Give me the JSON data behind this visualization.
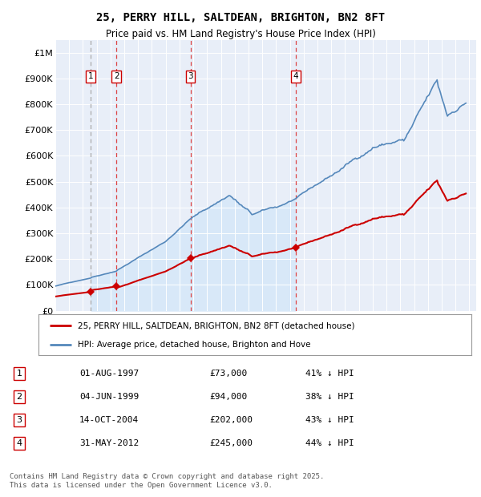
{
  "title": "25, PERRY HILL, SALTDEAN, BRIGHTON, BN2 8FT",
  "subtitle": "Price paid vs. HM Land Registry's House Price Index (HPI)",
  "footer": "Contains HM Land Registry data © Crown copyright and database right 2025.\nThis data is licensed under the Open Government Licence v3.0.",
  "legend_red": "25, PERRY HILL, SALTDEAN, BRIGHTON, BN2 8FT (detached house)",
  "legend_blue": "HPI: Average price, detached house, Brighton and Hove",
  "sales": [
    {
      "num": 1,
      "date_x": 1997.58,
      "price": 73000,
      "label": "01-AUG-1997",
      "pct": "41% ↓ HPI",
      "line_style": "gray"
    },
    {
      "num": 2,
      "date_x": 1999.42,
      "price": 94000,
      "label": "04-JUN-1999",
      "pct": "38% ↓ HPI",
      "line_style": "red"
    },
    {
      "num": 3,
      "date_x": 2004.79,
      "price": 202000,
      "label": "14-OCT-2004",
      "pct": "43% ↓ HPI",
      "line_style": "red"
    },
    {
      "num": 4,
      "date_x": 2012.42,
      "price": 245000,
      "label": "31-MAY-2012",
      "pct": "44% ↓ HPI",
      "line_style": "red"
    }
  ],
  "shade_start": 1997.58,
  "shade_end": 2012.42,
  "ylim": [
    0,
    1050000
  ],
  "ytick_vals": [
    0,
    100000,
    200000,
    300000,
    400000,
    500000,
    600000,
    700000,
    800000,
    900000,
    1000000
  ],
  "ytick_labels": [
    "£0",
    "£100K",
    "£200K",
    "£300K",
    "£400K",
    "£500K",
    "£600K",
    "£700K",
    "£800K",
    "£900K",
    "£1M"
  ],
  "xlim_start": 1995.0,
  "xlim_end": 2025.5,
  "bg_color": "#e8eef8",
  "shade_color": "#d8e8f8",
  "red_color": "#cc0000",
  "blue_color": "#5588bb",
  "dashed_gray": "#aaaaaa",
  "dashed_red": "#dd4444",
  "marker_color": "#cc0000",
  "box_edge_color": "#cc0000"
}
